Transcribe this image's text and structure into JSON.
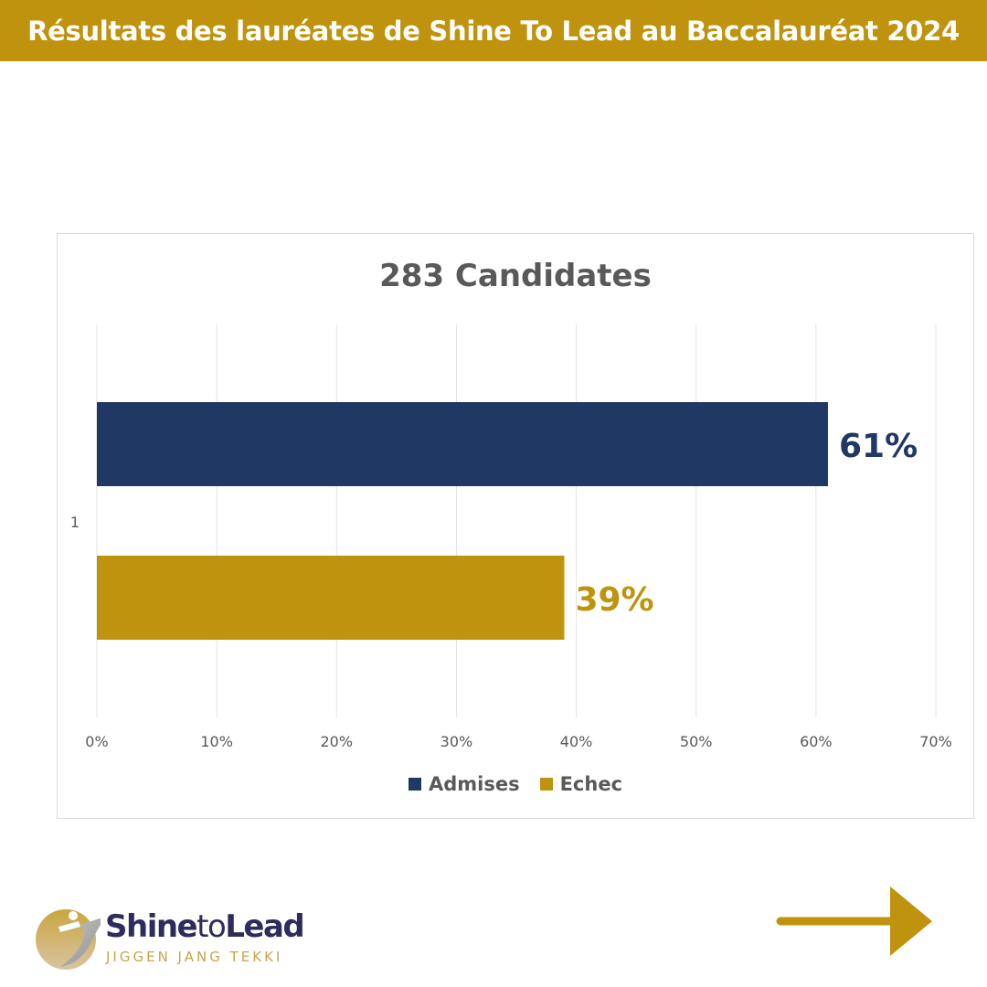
{
  "header": {
    "title": "Résultats des lauréates de Shine To Lead au Baccalauréat 2024"
  },
  "chart_data": {
    "type": "bar",
    "orientation": "horizontal",
    "title": "283 Candidates",
    "categories": [
      "1"
    ],
    "series": [
      {
        "name": "Admises",
        "values": [
          61
        ],
        "label": "61%",
        "color": "#1f3864"
      },
      {
        "name": "Echec",
        "values": [
          39
        ],
        "label": "39%",
        "color": "#bf930d"
      }
    ],
    "xlim": [
      0,
      70
    ],
    "xticks": [
      "0%",
      "10%",
      "20%",
      "30%",
      "40%",
      "50%",
      "60%",
      "70%"
    ],
    "grid": true,
    "legend": "bottom"
  },
  "logo": {
    "name_a": "Shine",
    "name_b": "to",
    "name_c": "Lead",
    "tagline": "JIGGEN JANG TEKKI"
  },
  "nav": {
    "next_icon": "arrow-right-icon",
    "color": "#bf930d"
  }
}
